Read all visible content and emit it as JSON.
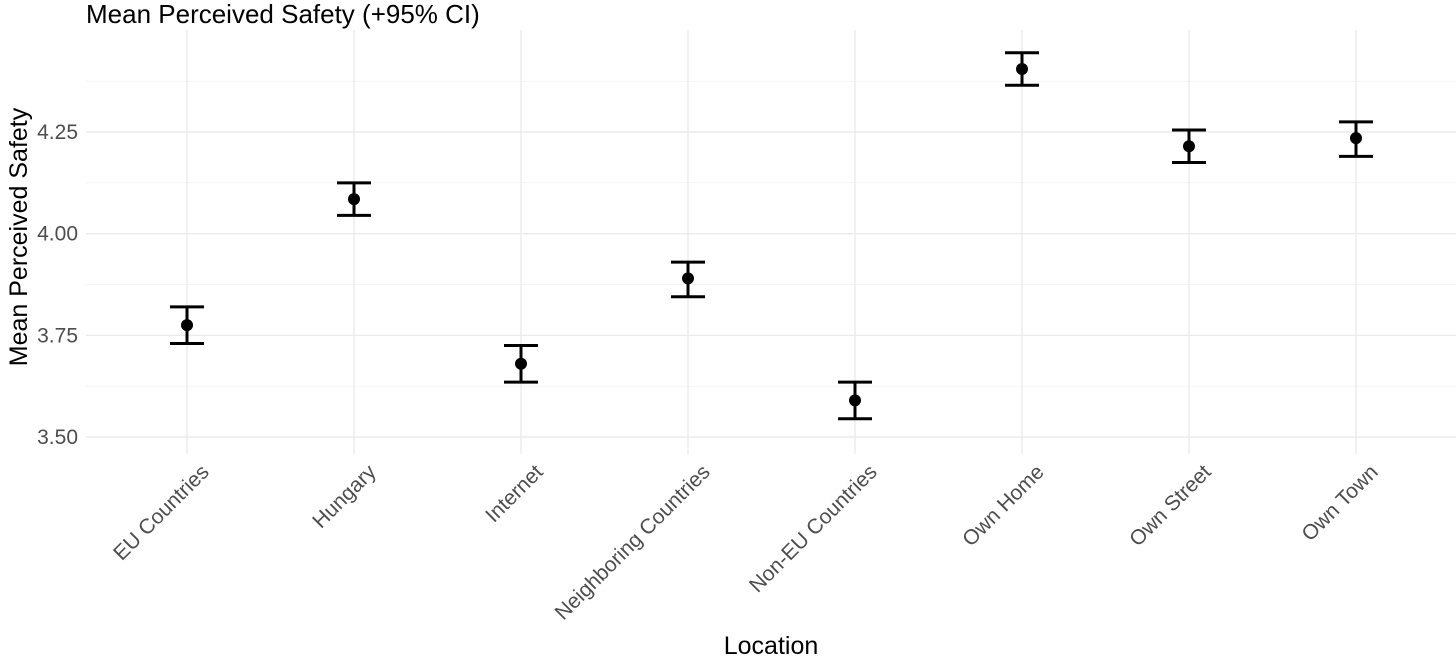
{
  "chart_data": {
    "type": "scatter",
    "title": "Mean Perceived Safety (+95% CI)",
    "xlabel": "Location",
    "ylabel": "Mean Perceived Safety",
    "categories": [
      "EU Countries",
      "Hungary",
      "Internet",
      "Neighboring Countries",
      "Non-EU Countries",
      "Own Home",
      "Own Street",
      "Own Town"
    ],
    "series": [
      {
        "values": [
          3.775,
          4.085,
          3.68,
          3.89,
          3.59,
          4.405,
          4.215,
          4.235
        ],
        "ci_lower": [
          3.73,
          4.045,
          3.635,
          3.845,
          3.545,
          4.365,
          4.175,
          4.19
        ],
        "ci_upper": [
          3.82,
          4.125,
          3.725,
          3.93,
          3.635,
          4.445,
          4.255,
          4.275
        ]
      }
    ],
    "yticks": [
      3.5,
      3.75,
      4.0,
      4.25
    ],
    "ytick_labels": [
      "3.50",
      "3.75",
      "4.00",
      "4.25"
    ],
    "ylim": [
      3.5,
      4.5
    ],
    "grid": true,
    "legend": "none",
    "colors": {
      "points": "#000000",
      "error_bars": "#000000",
      "grid": "#ebebeb",
      "tick_text": "#4d4d4d"
    }
  }
}
